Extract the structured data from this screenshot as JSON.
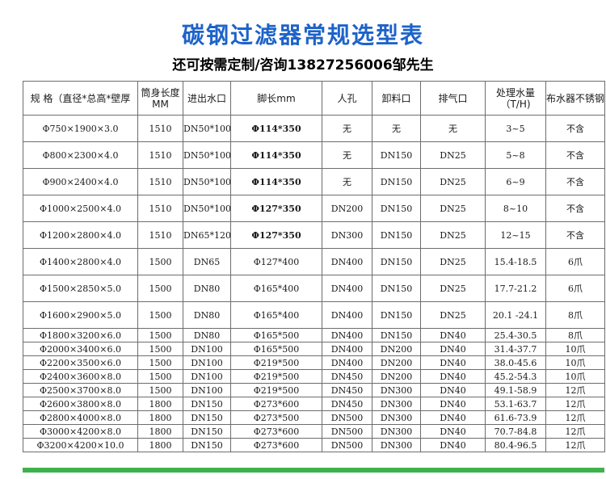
{
  "title": "碳钢过滤器常规选型表",
  "subtitle": "还可按需定制/咨询13827256006邹先生",
  "accent_color": "#1d63c9",
  "footer_bar_color": "#3fb24f",
  "table": {
    "headers": [
      "规 格（直径*总高*壁厚",
      "筒身长度MM",
      "进出水口",
      "脚长mm",
      "人孔",
      "卸料口",
      "排气口",
      "处理水量（T/H)",
      "布水器不锈钢"
    ],
    "rows": [
      [
        "Φ750×1900×3.0",
        "1510",
        "DN50*100",
        "Φ114*350",
        "无",
        "无",
        "无",
        "3~5",
        "不含"
      ],
      [
        "Φ800×2300×4.0",
        "1510",
        "DN50*100",
        "Φ114*350",
        "无",
        "DN150",
        "DN25",
        "5~8",
        "不含"
      ],
      [
        "Φ900×2400×4.0",
        "1510",
        "DN50*100",
        "Φ114*350",
        "无",
        "DN150",
        "DN25",
        "6~9",
        "不含"
      ],
      [
        "Φ1000×2500×4.0",
        "1510",
        "DN50*100",
        "Φ127*350",
        "DN200",
        "DN150",
        "DN25",
        "8~10",
        "不含"
      ],
      [
        "Φ1200×2800×4.0",
        "1510",
        "DN65*120",
        "Φ127*350",
        "DN300",
        "DN150",
        "DN25",
        "12~15",
        "不含"
      ],
      [
        "Φ1400×2800×4.0",
        "1500",
        "DN65",
        "Φ127*400",
        "DN400",
        "DN150",
        "DN25",
        "15.4-18.5",
        "6爪"
      ],
      [
        "Φ1500×2850×5.0",
        "1500",
        "DN80",
        "Φ165*400",
        "DN400",
        "DN150",
        "DN25",
        "17.7-21.2",
        "6爪"
      ],
      [
        "Φ1600×2900×5.0",
        "1500",
        "DN80",
        "Φ165*400",
        "DN400",
        "DN150",
        "DN25",
        "20.1 -24.1",
        "8爪"
      ],
      [
        "Φ1800×3200×6.0",
        "1500",
        "DN80",
        "Φ165*500",
        "DN400",
        "DN150",
        "DN40",
        "25.4-30.5",
        "8爪"
      ],
      [
        "Φ2000×3400×6.0",
        "1500",
        "DN100",
        "Φ165*500",
        "DN400",
        "DN200",
        "DN40",
        "31.4-37.7",
        "10爪"
      ],
      [
        "Φ2200×3500×6.0",
        "1500",
        "DN100",
        "Φ219*500",
        "DN400",
        "DN200",
        "DN40",
        "38.0-45.6",
        "10爪"
      ],
      [
        "Φ2400×3600×8.0",
        "1500",
        "DN100",
        "Φ219*500",
        "DN450",
        "DN200",
        "DN40",
        "45.2-54.3",
        "10爪"
      ],
      [
        "Φ2500×3700×8.0",
        "1500",
        "DN100",
        "Φ219*500",
        "DN450",
        "DN300",
        "DN40",
        "49.1-58.9",
        "12爪"
      ],
      [
        "Φ2600×3800×8.0",
        "1800",
        "DN150",
        "Φ273*600",
        "DN450",
        "DN300",
        "DN40",
        "53.1-63.7",
        "12爪"
      ],
      [
        "Φ2800×4000×8.0",
        "1800",
        "DN150",
        "Φ273*500",
        "DN500",
        "DN300",
        "DN40",
        "61.6-73.9",
        "12爪"
      ],
      [
        "Φ3000×4200×8.0",
        "1800",
        "DN150",
        "Φ273*600",
        "DN500",
        "DN300",
        "DN40",
        "70.7-84.8",
        "12爪"
      ],
      [
        "Φ3200×4200×10.0",
        "1800",
        "DN150",
        "Φ273*600",
        "DN500",
        "DN300",
        "DN40",
        "80.4-96.5",
        "12爪"
      ]
    ]
  }
}
